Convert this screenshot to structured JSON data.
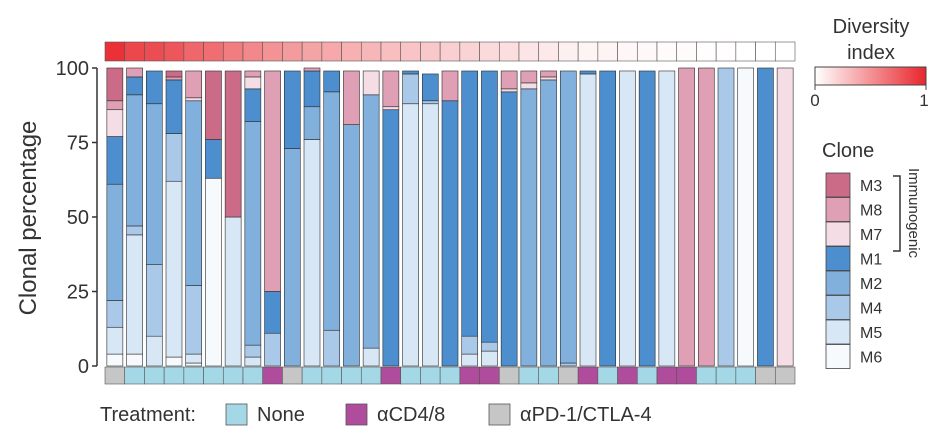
{
  "chart_data": {
    "type": "bar",
    "stacked": true,
    "ylabel": "Clonal percentage",
    "ylim": [
      0,
      100
    ],
    "yticks": [
      0,
      25,
      50,
      75,
      100
    ],
    "clone_order": [
      "M6",
      "M5",
      "M4",
      "M2",
      "M1",
      "M7",
      "M8",
      "M3"
    ],
    "samples": [
      {
        "treatment": "pd1",
        "diversity": 0.95,
        "clones": {
          "M2": 39,
          "M1": 16,
          "M3": 11,
          "M5": 9,
          "M7": 9,
          "M4": 9,
          "M6": 4,
          "M8": 3
        }
      },
      {
        "treatment": "none",
        "diversity": 0.85,
        "clones": {
          "M2": 44,
          "M5": 40,
          "M1": 6,
          "M4": 3,
          "M6": 4,
          "M8": 3
        }
      },
      {
        "treatment": "none",
        "diversity": 0.82,
        "clones": {
          "M2": 54,
          "M4": 24,
          "M5": 10,
          "M1": 11
        }
      },
      {
        "treatment": "none",
        "diversity": 0.78,
        "clones": {
          "M5": 59,
          "M1": 18,
          "M4": 16,
          "M6": 3,
          "M8": 1,
          "M3": 2
        }
      },
      {
        "treatment": "none",
        "diversity": 0.7,
        "clones": {
          "M2": 62,
          "M4": 23,
          "M8": 9,
          "M5": 3,
          "M6": 1,
          "M7": 1
        }
      },
      {
        "treatment": "none",
        "diversity": 0.67,
        "clones": {
          "M6": 63,
          "M3": 23,
          "M1": 13
        }
      },
      {
        "treatment": "none",
        "diversity": 0.6,
        "clones": {
          "M5": 50,
          "M3": 49
        }
      },
      {
        "treatment": "none",
        "diversity": 0.55,
        "clones": {
          "M2": 75,
          "M1": 11,
          "M4": 4,
          "M7": 4,
          "M8": 2,
          "M5": 3
        }
      },
      {
        "treatment": "cd48",
        "diversity": 0.5,
        "clones": {
          "M8": 74,
          "M1": 14,
          "M4": 11
        }
      },
      {
        "treatment": "pd1",
        "diversity": 0.46,
        "clones": {
          "M2": 73,
          "M1": 26
        }
      },
      {
        "treatment": "none",
        "diversity": 0.42,
        "clones": {
          "M5": 76,
          "M2": 11,
          "M1": 12,
          "M8": 1
        }
      },
      {
        "treatment": "none",
        "diversity": 0.4,
        "clones": {
          "M2": 80,
          "M4": 12,
          "M1": 7
        }
      },
      {
        "treatment": "none",
        "diversity": 0.36,
        "clones": {
          "M2": 81,
          "M8": 18
        }
      },
      {
        "treatment": "none",
        "diversity": 0.33,
        "clones": {
          "M2": 85,
          "M7": 8,
          "M5": 6
        }
      },
      {
        "treatment": "cd48",
        "diversity": 0.3,
        "clones": {
          "M1": 86,
          "M8": 12,
          "M7": 1
        }
      },
      {
        "treatment": "none",
        "diversity": 0.27,
        "clones": {
          "M5": 88,
          "M4": 10,
          "M1": 1
        }
      },
      {
        "treatment": "none",
        "diversity": 0.25,
        "clones": {
          "M5": 88,
          "M1": 9,
          "M4": 1
        }
      },
      {
        "treatment": "none",
        "diversity": 0.22,
        "clones": {
          "M1": 89,
          "M8": 10
        }
      },
      {
        "treatment": "cd48",
        "diversity": 0.2,
        "clones": {
          "M1": 89,
          "M4": 6,
          "M5": 4
        }
      },
      {
        "treatment": "cd48",
        "diversity": 0.17,
        "clones": {
          "M1": 91,
          "M5": 5,
          "M4": 3
        }
      },
      {
        "treatment": "pd1",
        "diversity": 0.15,
        "clones": {
          "M1": 92,
          "M8": 6,
          "M7": 1
        }
      },
      {
        "treatment": "none",
        "diversity": 0.12,
        "clones": {
          "M2": 93,
          "M8": 4,
          "M7": 2
        }
      },
      {
        "treatment": "none",
        "diversity": 0.1,
        "clones": {
          "M2": 96,
          "M8": 2,
          "M7": 1
        }
      },
      {
        "treatment": "pd1",
        "diversity": 0.07,
        "clones": {
          "M2": 98,
          "M4": 1
        }
      },
      {
        "treatment": "cd48",
        "diversity": 0.05,
        "clones": {
          "M5": 98,
          "M1": 1
        }
      },
      {
        "treatment": "none",
        "diversity": 0.05,
        "clones": {
          "M1": 99
        }
      },
      {
        "treatment": "cd48",
        "diversity": 0.04,
        "clones": {
          "M5": 99
        }
      },
      {
        "treatment": "none",
        "diversity": 0.03,
        "clones": {
          "M1": 99
        }
      },
      {
        "treatment": "cd48",
        "diversity": 0.02,
        "clones": {
          "M5": 99
        }
      },
      {
        "treatment": "cd48",
        "diversity": 0.02,
        "clones": {
          "M8": 100
        }
      },
      {
        "treatment": "none",
        "diversity": 0.01,
        "clones": {
          "M8": 100
        }
      },
      {
        "treatment": "none",
        "diversity": 0.01,
        "clones": {
          "M4": 100
        }
      },
      {
        "treatment": "none",
        "diversity": 0.0,
        "clones": {
          "M6": 100
        }
      },
      {
        "treatment": "pd1",
        "diversity": 0.0,
        "clones": {
          "M1": 100
        }
      },
      {
        "treatment": "pd1",
        "diversity": 0.0,
        "clones": {
          "M7": 100
        }
      }
    ],
    "clone_legend": {
      "title": "Clone",
      "bracket_label": "Immunogenic",
      "items": [
        {
          "key": "M3",
          "label": "M3",
          "color": "#cc6b88"
        },
        {
          "key": "M8",
          "label": "M8",
          "color": "#df9fb4"
        },
        {
          "key": "M7",
          "label": "M7",
          "color": "#f5dde6"
        },
        {
          "key": "M1",
          "label": "M1",
          "color": "#4d8ecf"
        },
        {
          "key": "M2",
          "label": "M2",
          "color": "#82b0dc"
        },
        {
          "key": "M4",
          "label": "M4",
          "color": "#aac9e8"
        },
        {
          "key": "M5",
          "label": "M5",
          "color": "#d8e7f5"
        },
        {
          "key": "M6",
          "label": "M6",
          "color": "#f6fafd"
        }
      ]
    },
    "diversity_legend": {
      "title_line1": "Diversity",
      "title_line2": "index",
      "min_label": "0",
      "max_label": "1",
      "color_low": "#ffffff",
      "color_high": "#e8262c"
    },
    "treatment_legend": {
      "title": "Treatment:",
      "items": [
        {
          "key": "none",
          "label": "None",
          "color": "#a5d8e6"
        },
        {
          "key": "cd48",
          "label": "αCD4/8",
          "color": "#b04c9c"
        },
        {
          "key": "pd1",
          "label": "αPD-1/CTLA-4",
          "color": "#c6c6c6"
        }
      ]
    }
  }
}
